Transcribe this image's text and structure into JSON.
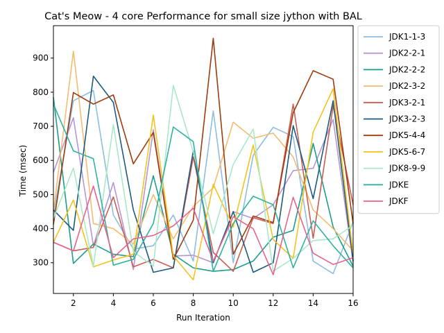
{
  "chart_data": {
    "type": "line",
    "title": "Cat's Meow - 4 core Performance for small size jython with BAL",
    "xlabel": "Run Iteration",
    "ylabel": "Time (msec)",
    "xlim": [
      1,
      16
    ],
    "ylim": [
      210,
      995
    ],
    "xticks": [
      2,
      4,
      6,
      8,
      10,
      12,
      14,
      16
    ],
    "yticks": [
      300,
      400,
      500,
      600,
      700,
      800,
      900
    ],
    "grid": false,
    "legend_position": "outside-right",
    "x": [
      1,
      2,
      3,
      4,
      5,
      6,
      7,
      8,
      9,
      10,
      11,
      12,
      13,
      14,
      15,
      16
    ],
    "series": [
      {
        "name": "JDK1-1-3",
        "color": "#8bbde6",
        "values": [
          440,
          775,
          805,
          440,
          340,
          350,
          440,
          305,
          745,
          300,
          615,
          697,
          670,
          305,
          268,
          420
        ]
      },
      {
        "name": "JDK2-2-1",
        "color": "#b794d4",
        "values": [
          565,
          725,
          350,
          535,
          280,
          690,
          320,
          322,
          300,
          450,
          430,
          470,
          570,
          577,
          720,
          300
        ]
      },
      {
        "name": "JDK2-2-2",
        "color": "#1a9e8a",
        "values": [
          785,
          298,
          355,
          325,
          318,
          555,
          325,
          285,
          275,
          280,
          305,
          375,
          395,
          650,
          405,
          290
        ]
      },
      {
        "name": "JDK2-3-2",
        "color": "#f7bb70",
        "values": [
          450,
          920,
          415,
          400,
          355,
          500,
          370,
          465,
          520,
          712,
          665,
          680,
          610,
          455,
          400,
          335
        ]
      },
      {
        "name": "JDK3-2-1",
        "color": "#cc5b50",
        "values": [
          360,
          335,
          345,
          493,
          288,
          310,
          285,
          610,
          330,
          275,
          432,
          415,
          765,
          372,
          760,
          470
        ]
      },
      {
        "name": "JDK3-2-3",
        "color": "#1b5a80",
        "values": [
          455,
          395,
          847,
          770,
          455,
          272,
          285,
          628,
          300,
          450,
          272,
          300,
          702,
          488,
          775,
          305
        ]
      },
      {
        "name": "JDK5-4-4",
        "color": "#a03a0c",
        "values": [
          412,
          799,
          765,
          792,
          590,
          682,
          310,
          425,
          958,
          325,
          437,
          418,
          740,
          863,
          838,
          415
        ]
      },
      {
        "name": "JDK5-6-7",
        "color": "#f5c21e",
        "values": [
          360,
          484,
          288,
          308,
          325,
          733,
          320,
          250,
          530,
          405,
          645,
          368,
          313,
          683,
          810,
          325
        ]
      },
      {
        "name": "JDK8-9-9",
        "color": "#a9e8c8",
        "values": [
          430,
          578,
          290,
          705,
          333,
          290,
          820,
          625,
          385,
          588,
          692,
          275,
          313,
          365,
          370,
          410
        ]
      },
      {
        "name": "JDKE",
        "color": "#2eb3a1",
        "values": [
          765,
          628,
          605,
          293,
          310,
          415,
          698,
          655,
          275,
          415,
          495,
          470,
          285,
          423,
          350,
          285
        ]
      },
      {
        "name": "JDKF",
        "color": "#e8638a",
        "values": [
          360,
          335,
          525,
          315,
          370,
          380,
          408,
          460,
          305,
          435,
          400,
          265,
          492,
          328,
          295,
          315
        ]
      }
    ]
  }
}
